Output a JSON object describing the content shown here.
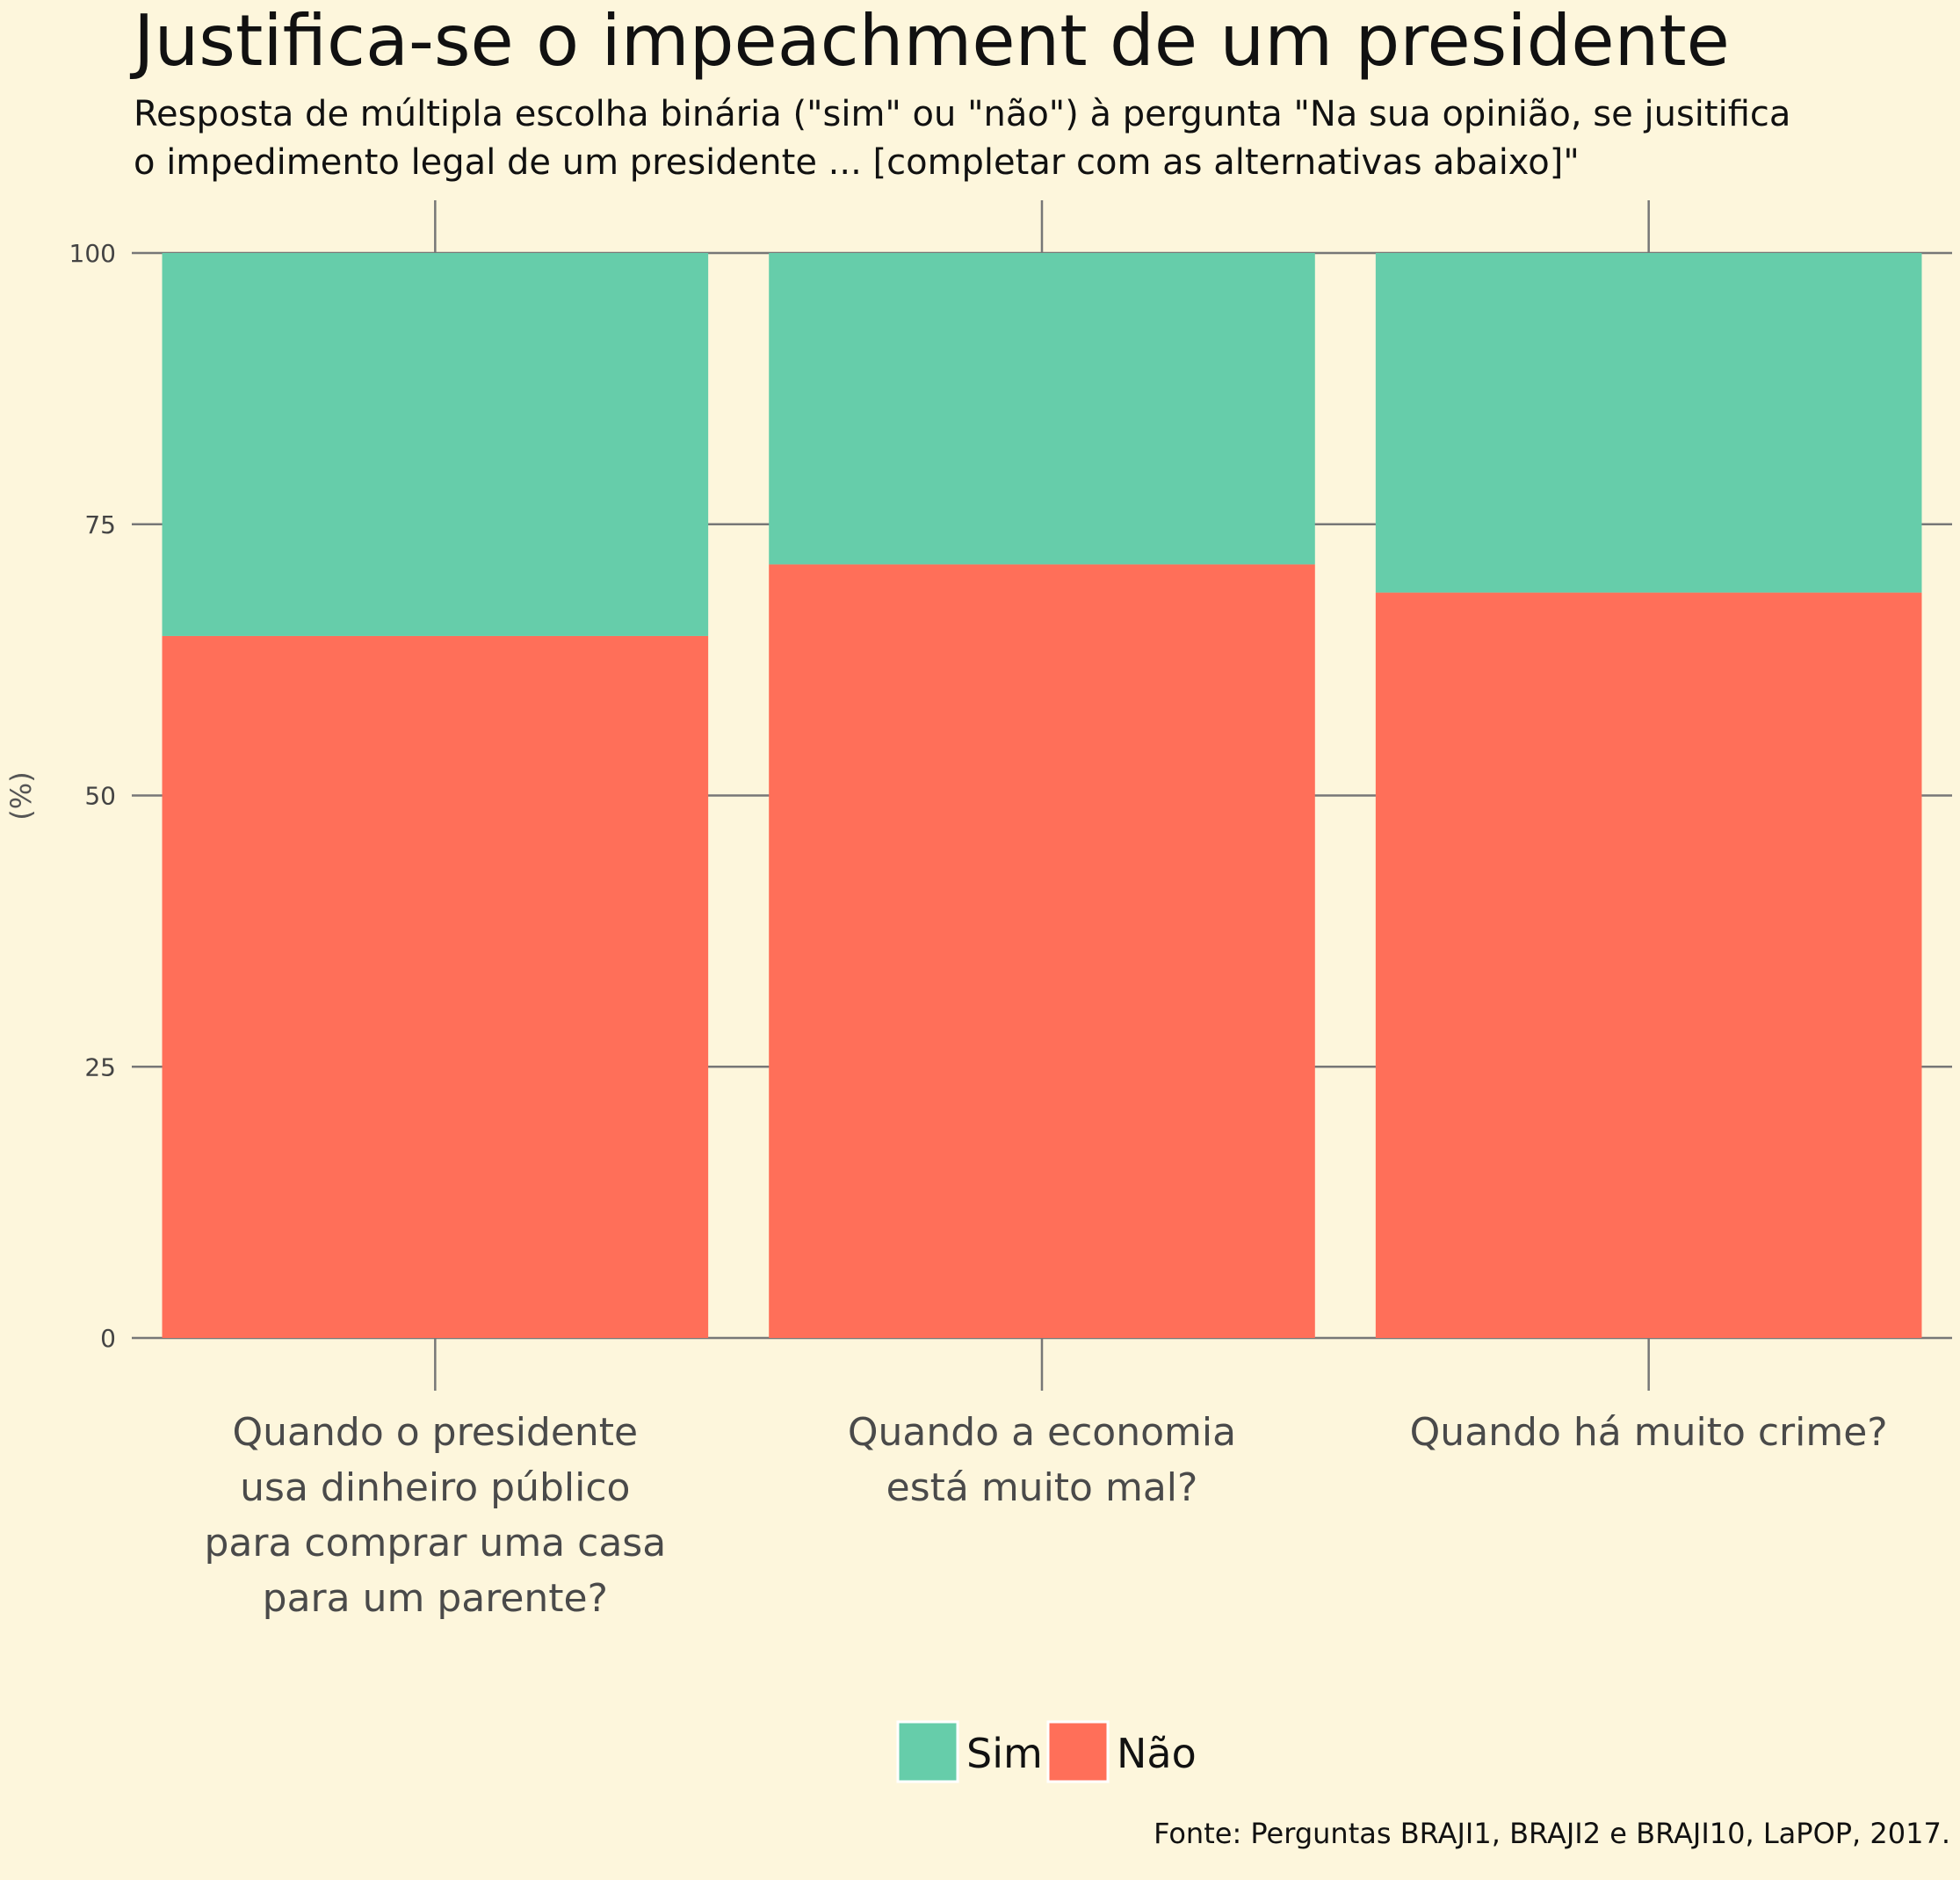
{
  "chart_data": {
    "type": "bar",
    "stacked": true,
    "title": "Justifica-se o impeachment de um presidente",
    "subtitle": [
      "Resposta de múltipla escolha binária (\"sim\" ou \"não\") à pergunta \"Na sua opinião, se jusitifica",
      " o impedimento legal de um presidente ... [completar com as alternativas abaixo]\""
    ],
    "ylabel": "(%)",
    "ylim": [
      0,
      100
    ],
    "yticks": [
      0,
      25,
      50,
      75,
      100
    ],
    "grid": true,
    "legend_position": "bottom",
    "categories": [
      [
        "Quando o presidente",
        "usa dinheiro público",
        "para comprar uma casa",
        "para um parente?"
      ],
      [
        "Quando a economia",
        "está muito mal?"
      ],
      [
        "Quando há muito crime?"
      ]
    ],
    "series": [
      {
        "name": "Não",
        "color": "#ff6f59",
        "values": [
          64.7,
          71.3,
          68.7
        ]
      },
      {
        "name": "Sim",
        "color": "#66cdaa",
        "values": [
          35.3,
          28.7,
          31.3
        ]
      }
    ],
    "legend_order": [
      "Sim",
      "Não"
    ],
    "caption": "Fonte: Perguntas BRAJI1, BRAJI2 e BRAJI10, LaPOP, 2017."
  }
}
